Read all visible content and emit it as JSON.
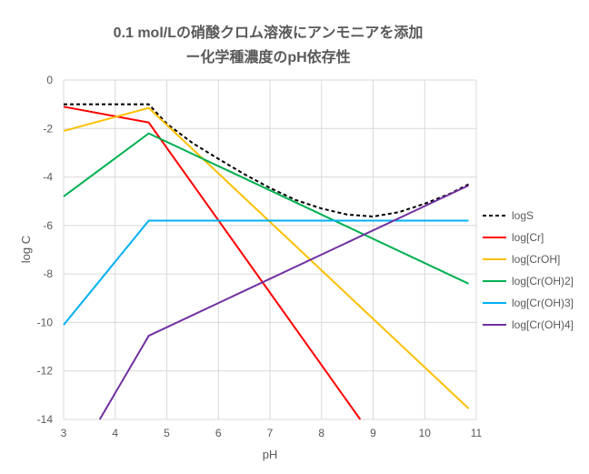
{
  "chart_data": {
    "type": "line",
    "title_line1": "0.1 mol/Lの硝酸クロム溶液にアンモニアを添加",
    "title_line2": "ー化学種濃度のpH依存性",
    "xlabel": "pH",
    "ylabel": "log C",
    "xlim": [
      3,
      11
    ],
    "ylim": [
      -14,
      0
    ],
    "xticks": [
      3,
      4,
      5,
      6,
      7,
      8,
      9,
      10,
      11
    ],
    "yticks": [
      0,
      -2,
      -4,
      -6,
      -8,
      -10,
      -12,
      -14
    ],
    "grid": true,
    "legend_position": "right",
    "series": [
      {
        "name": "logS",
        "color": "#000000",
        "dashed": true,
        "points": [
          [
            3,
            -1
          ],
          [
            4.65,
            -1
          ],
          [
            5,
            -1.8
          ],
          [
            5.5,
            -2.6
          ],
          [
            6,
            -3.25
          ],
          [
            6.5,
            -3.88
          ],
          [
            7,
            -4.45
          ],
          [
            7.5,
            -4.95
          ],
          [
            8,
            -5.3
          ],
          [
            8.5,
            -5.55
          ],
          [
            9,
            -5.63
          ],
          [
            9.5,
            -5.45
          ],
          [
            10,
            -5.1
          ],
          [
            10.5,
            -4.68
          ],
          [
            10.85,
            -4.3
          ]
        ]
      },
      {
        "name": "log[Cr]",
        "color": "#ff0000",
        "dashed": false,
        "points": [
          [
            3,
            -1.1
          ],
          [
            4.65,
            -1.75
          ],
          [
            8.75,
            -14
          ]
        ]
      },
      {
        "name": "log[CrOH]",
        "color": "#ffc000",
        "dashed": false,
        "points": [
          [
            3,
            -2.1
          ],
          [
            4.65,
            -1.15
          ],
          [
            10.85,
            -13.55
          ]
        ]
      },
      {
        "name": "log[Cr(OH)2]",
        "color": "#00b050",
        "dashed": false,
        "points": [
          [
            3,
            -4.8
          ],
          [
            4.65,
            -2.2
          ],
          [
            10.85,
            -8.4
          ]
        ]
      },
      {
        "name": "log[Cr(OH)3]",
        "color": "#00b0f0",
        "dashed": false,
        "points": [
          [
            3,
            -10.1
          ],
          [
            4.65,
            -5.8
          ],
          [
            10.85,
            -5.8
          ]
        ]
      },
      {
        "name": "log[Cr(OH)4]",
        "color": "#7030a0",
        "dashed": false,
        "points": [
          [
            3.7,
            -14
          ],
          [
            4.65,
            -10.55
          ],
          [
            10.85,
            -4.35
          ]
        ]
      }
    ]
  }
}
